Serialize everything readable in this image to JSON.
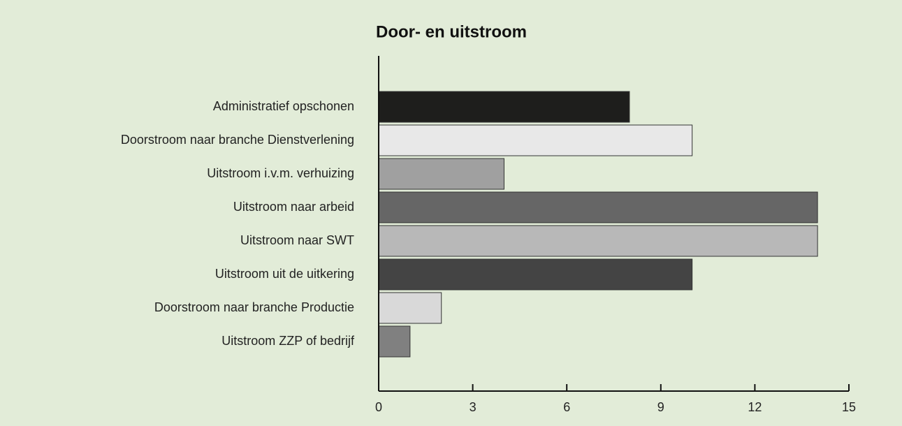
{
  "chart_data": {
    "type": "barh",
    "title": "Door- en uitstroom",
    "categories": [
      "Administratief opschonen",
      "Doorstroom naar branche Dienstverlening",
      "Uitstroom i.v.m. verhuizing",
      "Uitstroom naar arbeid",
      "Uitstroom naar SWT",
      "Uitstroom uit de uitkering",
      "Doorstroom naar branche Productie",
      "Uitstroom ZZP of bedrijf"
    ],
    "values": [
      8,
      10,
      4,
      14,
      14,
      10,
      2,
      1
    ],
    "colors": [
      "#1e1e1c",
      "#e8e8e8",
      "#a0a0a0",
      "#666666",
      "#b8b8b8",
      "#444444",
      "#d9d9d9",
      "#808080"
    ],
    "xlim": [
      0,
      15
    ],
    "xticks": [
      0,
      3,
      6,
      9,
      12,
      15
    ]
  }
}
